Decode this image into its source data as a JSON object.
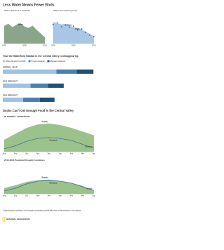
{
  "header": {
    "title": "Less Water Means Fewer Birds"
  },
  "chart_data": [
    {
      "type": "area",
      "title": "Water delivered to wetlands",
      "x": [
        1995,
        1997,
        1999,
        2001,
        2003,
        2005,
        2007,
        2009,
        2011,
        2013,
        2015
      ],
      "series": [
        {
          "name": "Water",
          "color": "#8aa58a",
          "values": [
            62,
            70,
            58,
            66,
            72,
            60,
            55,
            63,
            48,
            35,
            22
          ]
        }
      ],
      "xlim": [
        1995,
        2015
      ],
      "xticks": [
        1995,
        2005,
        2015
      ],
      "ylim": [
        0,
        100
      ]
    },
    {
      "type": "area",
      "title": "Water and wintering birds",
      "x": [
        1995,
        1997,
        1999,
        2001,
        2003,
        2005,
        2007,
        2009,
        2011,
        2013,
        2015
      ],
      "series": [
        {
          "name": "Water",
          "color": "#a9c6e4",
          "values": [
            75,
            72,
            68,
            70,
            64,
            58,
            55,
            50,
            42,
            34,
            26
          ]
        },
        {
          "name": "Birds",
          "color": "#2f5f8f",
          "marker": true,
          "values": [
            68,
            74,
            60,
            66,
            58,
            62,
            48,
            52,
            40,
            30,
            24
          ]
        }
      ],
      "xlim": [
        1995,
        2015
      ],
      "xticks": [
        1995,
        2005,
        2015
      ],
      "ylim": [
        0,
        100
      ]
    },
    {
      "type": "hbar-stacked",
      "title": "How the Waterfowl Habitat in the Central Valley is Disappearing",
      "categories": [
        "NORMAL YEAR",
        "2014 DROUGHT",
        "2015 DROUGHT"
      ],
      "series": [
        {
          "name": "Winter-flooded rice fields",
          "color": "#9cc3e6",
          "values": [
            290,
            150,
            110
          ]
        },
        {
          "name": "Private wetlands",
          "color": "#4a7fb5",
          "values": [
            110,
            95,
            90
          ]
        },
        {
          "name": "Managed wetlands",
          "color": "#1f4e79",
          "values": [
            90,
            85,
            80
          ]
        }
      ],
      "xlim": [
        0,
        500
      ]
    },
    {
      "type": "area",
      "title": "Ducks Can't Get Enough Food in the Central Valley",
      "subtitle": "IN NORMAL CONDITIONS",
      "categories": [
        "Aug",
        "Sep",
        "Oct",
        "Nov",
        "Dec",
        "Jan",
        "Feb",
        "Mar",
        "Apr"
      ],
      "series": [
        {
          "name": "Supply",
          "color": "#9bc28b",
          "values": [
            40,
            60,
            80,
            92,
            95,
            90,
            80,
            68,
            55
          ]
        },
        {
          "name": "Demand",
          "color": "#3a6fa8",
          "line": true,
          "values": [
            10,
            20,
            35,
            45,
            48,
            45,
            38,
            25,
            12
          ]
        }
      ],
      "annotation": "Surplus",
      "annotation_color": "#4f7f3f",
      "ylim": [
        0,
        100
      ]
    },
    {
      "type": "area",
      "subtitle": "2015-2016 Predicted Drought Conditions",
      "categories": [
        "Aug",
        "Sep",
        "Oct",
        "Nov",
        "Dec",
        "Jan",
        "Feb",
        "Mar",
        "Apr"
      ],
      "series": [
        {
          "name": "Supply",
          "color": "#9bc28b",
          "values": [
            20,
            30,
            42,
            48,
            50,
            45,
            38,
            28,
            10
          ]
        },
        {
          "name": "Demand",
          "color": "#3a6fa8",
          "line": true,
          "values": [
            10,
            20,
            35,
            45,
            48,
            45,
            38,
            25,
            12
          ]
        }
      ],
      "annotation": "Deficit",
      "annotation_color": "#d0402a",
      "ylim": [
        0,
        100
      ]
    }
  ],
  "footer": {
    "note": "Under drought conditions, food supply for wintering ducks falls short of demand late in the season.",
    "credit": "NATIONAL GEOGRAPHIC"
  }
}
